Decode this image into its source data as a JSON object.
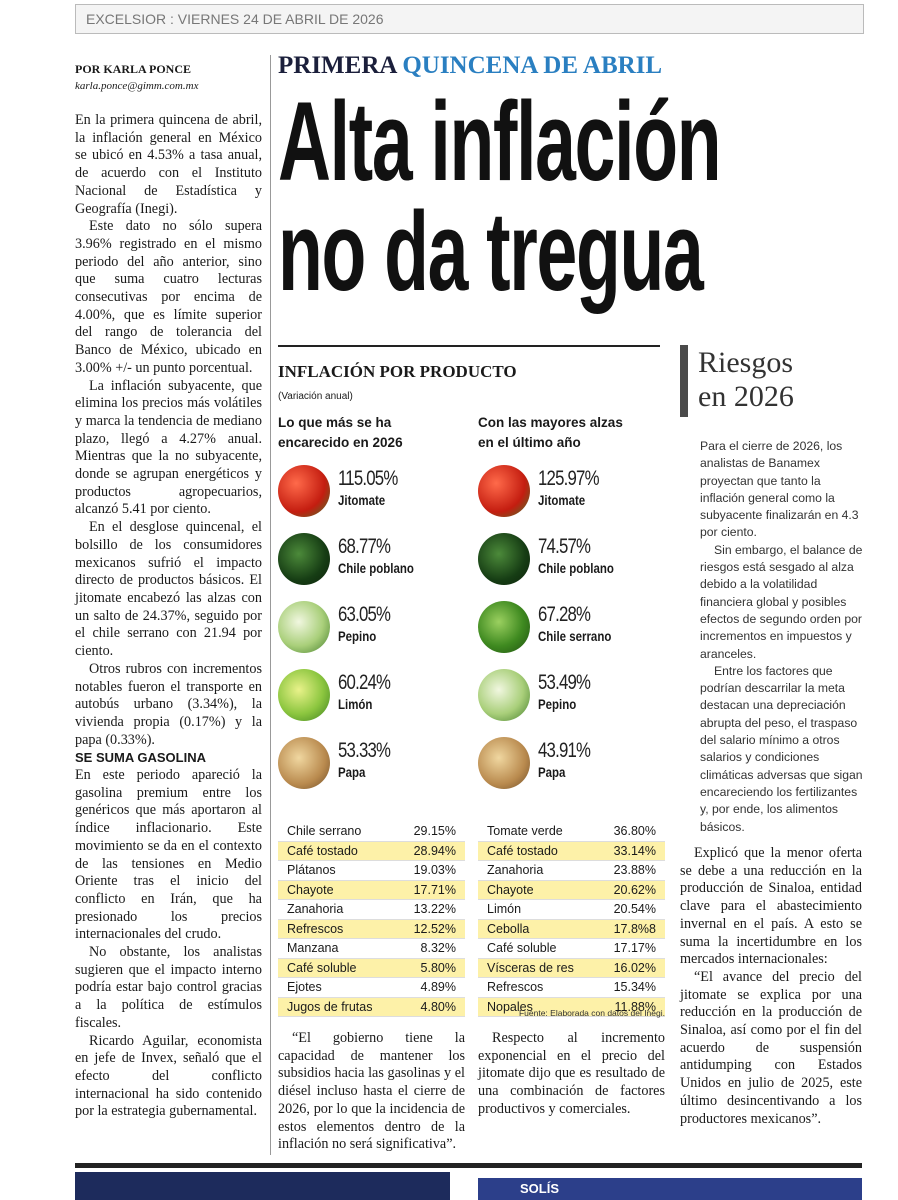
{
  "header": {
    "masthead": "EXCELSIOR : VIERNES 24 DE ABRIL DE 2026"
  },
  "byline": {
    "author": "POR KARLA PONCE",
    "email": "karla.ponce@gimm.com.mx"
  },
  "kicker": {
    "lead": "PRIMERA",
    "rest": "QUINCENA DE ABRIL"
  },
  "headline": [
    "Alta inflación",
    "no da tregua"
  ],
  "left_column": {
    "paragraphs": [
      "En la primera quincena de abril, la inflación general en México se ubicó en 4.53% a tasa anual, de acuerdo con el Instituto Nacional de Estadística y Geografía (Inegi).",
      "Este dato no sólo supera 3.96% registrado en el mismo periodo del año anterior, sino que suma cuatro lecturas consecutivas por encima de 4.00%, que es límite superior del rango de tolerancia del Banco de México, ubicado en 3.00% +/- un punto porcentual.",
      "La inflación subyacente, que elimina los precios más volátiles y marca la tendencia de mediano plazo, llegó a 4.27% anual. Mientras que la no subyacente, donde se agrupan energéticos y productos agropecuarios, alcanzó 5.41 por ciento.",
      "En el desglose quincenal, el bolsillo de los consumidores mexicanos sufrió el impacto directo de productos básicos. El jitomate encabezó las alzas con un salto de 24.37%, seguido por el chile serrano con 21.94 por ciento.",
      "Otros rubros con incrementos notables fueron el transporte en autobús urbano (3.34%), la vivienda propia (0.17%) y la papa (0.33%)."
    ],
    "subhead": "SE SUMA GASOLINA",
    "paragraphs_2": [
      "En este periodo apareció la gasolina premium entre los genéricos que más aportaron al índice inflacionario. Este movimiento se da en el contexto de las tensiones en Medio Oriente tras el inicio del conflicto en Irán, que ha presionado los precios internacionales del crudo.",
      "No obstante, los analistas sugieren que el impacto interno podría estar bajo control gracias a la política de estímulos fiscales.",
      "Ricardo Aguilar, economista en jefe de Invex, señaló que el efecto del conflicto internacional ha sido contenido por la estrategia gubernamental."
    ]
  },
  "infographic": {
    "title": "INFLACIÓN POR PRODUCTO",
    "subtitle": "(Variación anual)",
    "columns": [
      {
        "heading": "Lo que más se ha encarecido en 2026",
        "items": [
          {
            "value": "115.05%",
            "name": "Jitomate"
          },
          {
            "value": "68.77%",
            "name": "Chile poblano"
          },
          {
            "value": "63.05%",
            "name": "Pepino"
          },
          {
            "value": "60.24%",
            "name": "Limón"
          },
          {
            "value": "53.33%",
            "name": "Papa"
          }
        ],
        "table": [
          [
            "Chile serrano",
            "29.15%"
          ],
          [
            "Café tostado",
            "28.94%"
          ],
          [
            "Plátanos",
            "19.03%"
          ],
          [
            "Chayote",
            "17.71%"
          ],
          [
            "Zanahoria",
            "13.22%"
          ],
          [
            "Refrescos",
            "12.52%"
          ],
          [
            "Manzana",
            "8.32%"
          ],
          [
            "Café soluble",
            "5.80%"
          ],
          [
            "Ejotes",
            "4.89%"
          ],
          [
            "Jugos de frutas",
            "4.80%"
          ]
        ]
      },
      {
        "heading": "Con las mayores alzas en el último año",
        "items": [
          {
            "value": "125.97%",
            "name": "Jitomate"
          },
          {
            "value": "74.57%",
            "name": "Chile poblano"
          },
          {
            "value": "67.28%",
            "name": "Chile serrano"
          },
          {
            "value": "53.49%",
            "name": "Pepino"
          },
          {
            "value": "43.91%",
            "name": "Papa"
          }
        ],
        "table": [
          [
            "Tomate verde",
            "36.80%"
          ],
          [
            "Café tostado",
            "33.14%"
          ],
          [
            "Zanahoria",
            "23.88%"
          ],
          [
            "Chayote",
            "20.62%"
          ],
          [
            "Limón",
            "20.54%"
          ],
          [
            "Cebolla",
            "17.8%8"
          ],
          [
            "Café soluble",
            "17.17%"
          ],
          [
            "Vísceras de res",
            "16.02%"
          ],
          [
            "Refrescos",
            "15.34%"
          ],
          [
            "Nopales",
            "11.88%"
          ]
        ]
      }
    ],
    "source": "Fuente: Elaborada con datos del Inegi."
  },
  "bottom_columns": {
    "paragraphs": [
      "“El gobierno tiene la capacidad de mantener los subsidios hacia las gasolinas y el diésel incluso hasta el cierre de 2026, por lo que la incidencia de estos elementos dentro de la inflación no será significativa”.",
      "Respecto al incremento exponencial en el precio del jitomate dijo que es resultado de una combinación de factores productivos y comerciales."
    ]
  },
  "sidebar": {
    "title": [
      "Riesgos",
      "en 2026"
    ],
    "paragraphs": [
      "Para el cierre de 2026, los analistas de Banamex proyectan que tanto la inflación general como la subyacente finalizarán en 4.3 por ciento.",
      "Sin embargo, el balance de riesgos está sesgado al alza debido a la volatilidad financiera global y posibles efectos de segundo orden por incrementos en impuestos y aranceles.",
      "Entre los factores que podrían descarrilar la meta destacan una depreciación abrupta del peso, el traspaso del salario mínimo a otros salarios y condiciones climáticas adversas que sigan encareciendo los fertilizantes y, por ende, los alimentos básicos."
    ]
  },
  "right_column": {
    "paragraphs": [
      "Explicó que la menor oferta se debe a una reducción en la producción de Sinaloa, entidad clave para el abastecimiento invernal en el país. A esto se suma la incertidumbre en los mercados internacionales:",
      "“El avance del precio del jitomate se explica por una reducción en la producción de Sinaloa, así como por el fin del acuerdo de suspensión antidumping con Estados Unidos en julio de 2025, este último desincentivando a los productores mexicanos”."
    ]
  },
  "footer": {
    "label": "SOLÍS"
  }
}
